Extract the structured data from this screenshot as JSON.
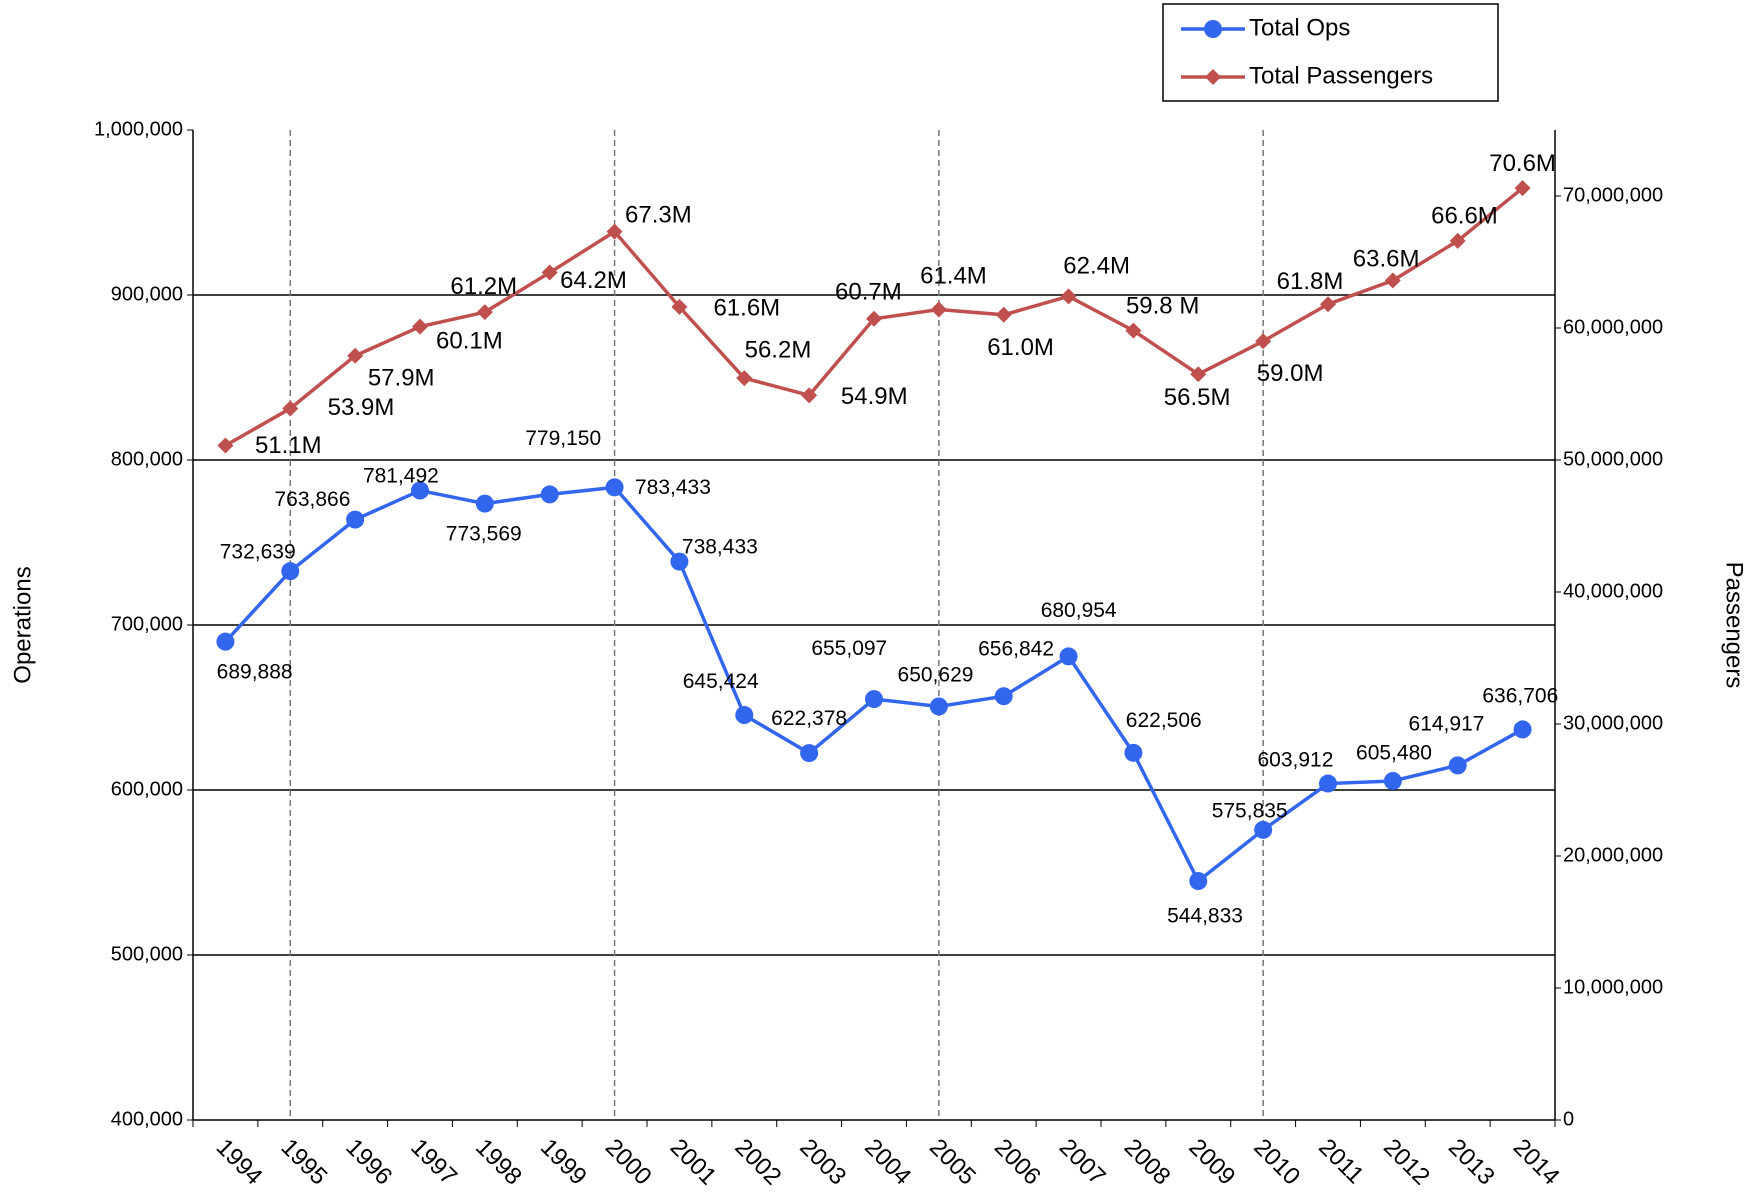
{
  "chart_data": {
    "type": "line",
    "y_label": "Operations",
    "y2_label": "Passengers",
    "categories": [
      "1994",
      "1995",
      "1996",
      "1997",
      "1998",
      "1999",
      "2000",
      "2001",
      "2002",
      "2003",
      "2004",
      "2005",
      "2006",
      "2007",
      "2008",
      "2009",
      "2010",
      "2011",
      "2012",
      "2013",
      "2014"
    ],
    "series": [
      {
        "name": "Total Ops",
        "color": "#3366ee",
        "marker": "circle",
        "values": [
          689888,
          732639,
          763866,
          781492,
          773569,
          779150,
          783433,
          738433,
          645424,
          622378,
          655097,
          650629,
          656842,
          680954,
          622506,
          544833,
          575835,
          603912,
          605480,
          614917,
          636706
        ],
        "value_labels": [
          "689,888",
          "732,639",
          "763,866",
          "781,492",
          "773,569",
          "779,150",
          "783,433",
          "738,433",
          "645,424",
          "622,378",
          "655,097",
          "650,629",
          "656,842",
          "680,954",
          "622,506",
          "544,833",
          "575,835",
          "603,912",
          "605,480",
          "614,917",
          "636,706"
        ]
      },
      {
        "name": "Total Passengers",
        "color": "#c0504d",
        "marker": "diamond",
        "axis": "y2",
        "values": [
          51100000,
          53900000,
          57900000,
          60100000,
          61200000,
          64200000,
          67300000,
          61600000,
          56200000,
          54900000,
          60700000,
          61400000,
          61000000,
          62400000,
          59800000,
          56500000,
          59000000,
          61800000,
          63600000,
          66600000,
          70600000
        ],
        "value_labels": [
          "51.1M",
          "53.9M",
          "57.9M",
          "60.1M",
          "61.2M",
          "64.2M",
          "67.3M",
          "61.6M",
          "56.2M",
          "54.9M",
          "60.7M",
          "61.4M",
          "61.0M",
          "62.4M",
          "59.8 M",
          "56.5M",
          "59.0M",
          "61.8M",
          "63.6M",
          "66.6M",
          "70.6M"
        ]
      }
    ],
    "ylim": [
      400000,
      1000000
    ],
    "yticks": [
      {
        "value": 400000,
        "label": "400,000"
      },
      {
        "value": 500000,
        "label": "500,000"
      },
      {
        "value": 600000,
        "label": "600,000"
      },
      {
        "value": 700000,
        "label": "700,000"
      },
      {
        "value": 800000,
        "label": "800,000"
      },
      {
        "value": 900000,
        "label": "900,000"
      },
      {
        "value": 1000000,
        "label": "1,000,000"
      }
    ],
    "y2lim": [
      0,
      75000000
    ],
    "y2ticks": [
      0,
      {
        "value": 10000000,
        "label": "10,000,000"
      },
      {
        "value": 20000000,
        "label": "20,000,000"
      },
      {
        "value": 30000000,
        "label": "30,000,000"
      },
      {
        "value": 40000000,
        "label": "40,000,000"
      },
      {
        "value": 50000000,
        "label": "50,000,000"
      },
      {
        "value": 60000000,
        "label": "60,000,000"
      },
      {
        "value": 70000000,
        "label": "70,000,000"
      }
    ],
    "grid": true,
    "vertical_lines": [
      "1995",
      "2000",
      "2005",
      "2010"
    ],
    "legend": "top-right"
  }
}
